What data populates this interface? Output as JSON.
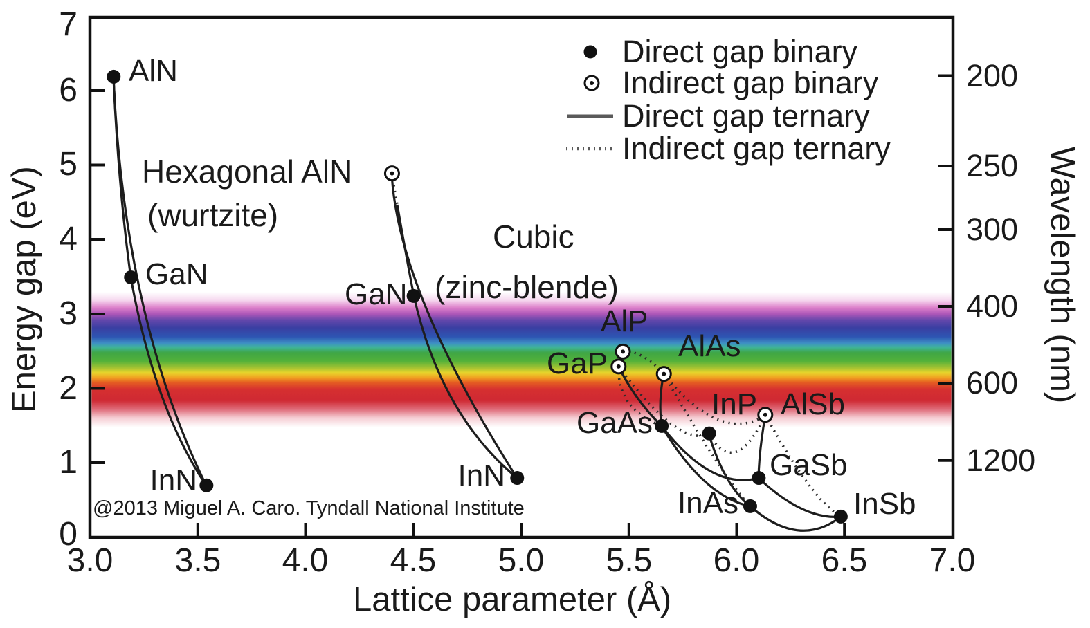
{
  "figure": {
    "copyright": "@2013 Miguel A. Caro. Tyndall National Institute"
  },
  "annotations": {
    "hexagonal_line1": "Hexagonal AlN",
    "hexagonal_line2": "(wurtzite)",
    "cubic_line1": "Cubic",
    "cubic_line2": "(zinc-blende)"
  },
  "legend": {
    "items": [
      {
        "marker": "filled-dot",
        "label": "Direct gap binary"
      },
      {
        "marker": "open-dot",
        "label": "Indirect gap binary"
      },
      {
        "marker": "solid-line",
        "label": "Direct gap ternary"
      },
      {
        "marker": "dotted-line",
        "label": "Indirect gap ternary"
      }
    ]
  },
  "axes": {
    "x": {
      "label": "Lattice parameter (Å)",
      "ticks": [
        "3.0",
        "3.5",
        "4.0",
        "4.5",
        "5.0",
        "5.5",
        "6.0",
        "6.5",
        "7.0"
      ]
    },
    "y": {
      "label": "Energy gap (eV)",
      "ticks": [
        "7",
        "6",
        "5",
        "4",
        "3",
        "2",
        "1",
        "0"
      ]
    },
    "y2": {
      "label": "Wavelength (nm)",
      "ticks": [
        "200",
        "250",
        "300",
        "400",
        "600",
        "1200"
      ]
    }
  },
  "chart_data": {
    "type": "scatter",
    "title": "",
    "xlabel": "Lattice parameter (Å)",
    "ylabel": "Energy gap (eV)",
    "y2label": "Wavelength (nm)",
    "xlim": [
      3.0,
      7.0
    ],
    "ylim": [
      0,
      7
    ],
    "y2_ticks_nm": [
      200,
      250,
      300,
      400,
      600,
      1200
    ],
    "visible_spectrum_band_eV": [
      1.7,
      3.2
    ],
    "points": [
      {
        "label": "AlN",
        "structure": "wurtzite",
        "gap": "direct",
        "lattice_A": 3.11,
        "gap_eV": 6.2
      },
      {
        "label": "GaN",
        "structure": "wurtzite",
        "gap": "direct",
        "lattice_A": 3.19,
        "gap_eV": 3.5
      },
      {
        "label": "InN",
        "structure": "wurtzite",
        "gap": "direct",
        "lattice_A": 3.54,
        "gap_eV": 0.7
      },
      {
        "label": "AlN",
        "structure": "zinc-blende",
        "gap": "indirect",
        "lattice_A": 4.4,
        "gap_eV": 4.9
      },
      {
        "label": "GaN",
        "structure": "zinc-blende",
        "gap": "direct",
        "lattice_A": 4.5,
        "gap_eV": 3.25
      },
      {
        "label": "InN",
        "structure": "zinc-blende",
        "gap": "direct",
        "lattice_A": 4.98,
        "gap_eV": 0.8
      },
      {
        "label": "AlP",
        "structure": "zinc-blende",
        "gap": "indirect",
        "lattice_A": 5.47,
        "gap_eV": 2.5
      },
      {
        "label": "GaP",
        "structure": "zinc-blende",
        "gap": "indirect",
        "lattice_A": 5.45,
        "gap_eV": 2.3
      },
      {
        "label": "AlAs",
        "structure": "zinc-blende",
        "gap": "indirect",
        "lattice_A": 5.66,
        "gap_eV": 2.2
      },
      {
        "label": "GaAs",
        "structure": "zinc-blende",
        "gap": "direct",
        "lattice_A": 5.65,
        "gap_eV": 1.5
      },
      {
        "label": "InP",
        "structure": "zinc-blende",
        "gap": "direct",
        "lattice_A": 5.87,
        "gap_eV": 1.4
      },
      {
        "label": "AlSb",
        "structure": "zinc-blende",
        "gap": "indirect",
        "lattice_A": 6.13,
        "gap_eV": 1.65
      },
      {
        "label": "GaSb",
        "structure": "zinc-blende",
        "gap": "direct",
        "lattice_A": 6.1,
        "gap_eV": 0.8
      },
      {
        "label": "InAs",
        "structure": "zinc-blende",
        "gap": "direct",
        "lattice_A": 6.06,
        "gap_eV": 0.42
      },
      {
        "label": "InSb",
        "structure": "zinc-blende",
        "gap": "direct",
        "lattice_A": 6.48,
        "gap_eV": 0.28
      }
    ],
    "ternary_curves": [
      {
        "from": "AlN (wurtzite)",
        "to": "GaN (wurtzite)",
        "style": "solid"
      },
      {
        "from": "GaN (wurtzite)",
        "to": "InN (wurtzite)",
        "style": "solid"
      },
      {
        "from": "AlN (wurtzite)",
        "to": "InN (wurtzite)",
        "style": "solid"
      },
      {
        "from": "AlN (zinc-blende)",
        "to": "GaN (zinc-blende)",
        "style": "dotted-then-solid"
      },
      {
        "from": "GaN (zinc-blende)",
        "to": "InN (zinc-blende)",
        "style": "solid"
      },
      {
        "from": "AlN (zinc-blende)",
        "to": "InN (zinc-blende)",
        "style": "solid"
      },
      {
        "from": "GaP",
        "to": "GaAs",
        "style": "solid"
      },
      {
        "from": "AlAs",
        "to": "GaAs",
        "style": "solid"
      },
      {
        "from": "GaAs",
        "to": "InAs",
        "style": "solid"
      },
      {
        "from": "GaAs",
        "to": "GaSb",
        "style": "solid"
      },
      {
        "from": "InP",
        "to": "InAs",
        "style": "solid"
      },
      {
        "from": "AlSb",
        "to": "GaSb",
        "style": "solid"
      },
      {
        "from": "GaSb",
        "to": "InSb",
        "style": "solid"
      },
      {
        "from": "InAs",
        "to": "InSb",
        "style": "solid"
      },
      {
        "from": "AlP",
        "to": "AlAs",
        "style": "dotted"
      },
      {
        "from": "GaP",
        "to": "InP",
        "style": "dotted"
      },
      {
        "from": "GaP",
        "to": "GaAs",
        "style": "dotted"
      },
      {
        "from": "AlAs",
        "to": "AlSb",
        "style": "dotted"
      },
      {
        "from": "AlSb",
        "to": "InSb",
        "style": "dotted"
      },
      {
        "from": "AlSb",
        "to": "InP",
        "style": "dotted"
      },
      {
        "from": "AlAs",
        "to": "InAs",
        "style": "dotted"
      }
    ]
  }
}
